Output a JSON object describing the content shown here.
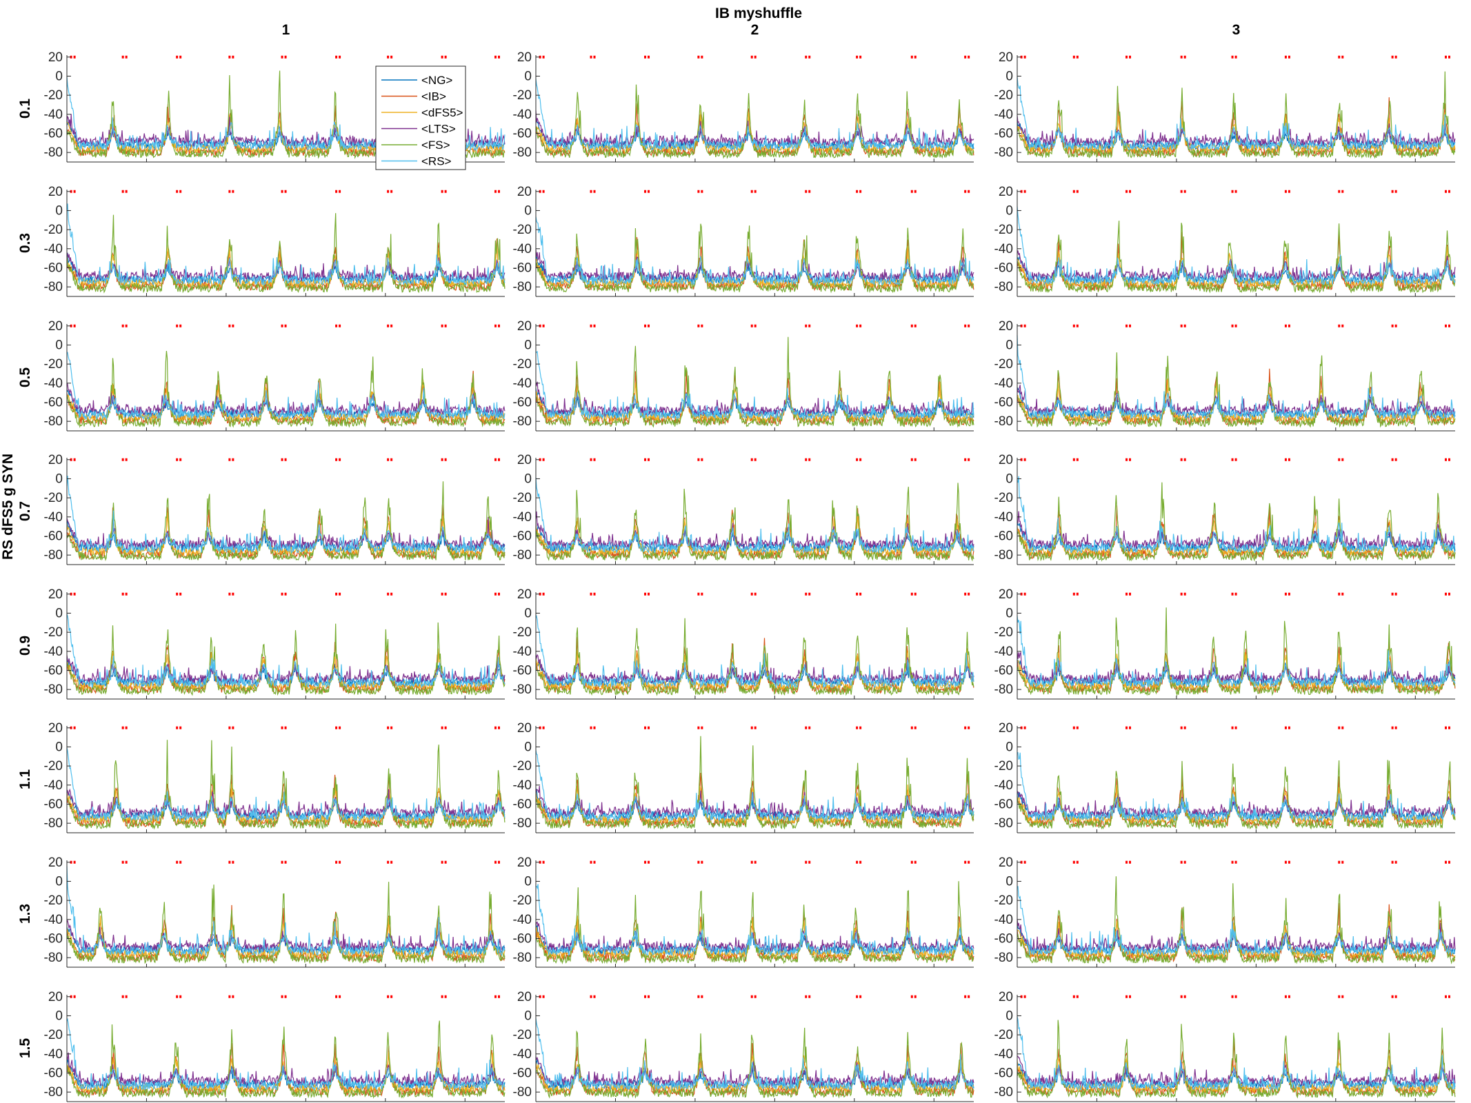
{
  "chart_data": {
    "type": "line",
    "title": "IB myshuffle",
    "column_labels": [
      "1",
      "2",
      "3"
    ],
    "row_axis_label": "RS dFS5 g SYN",
    "row_labels": [
      "0.1",
      "0.3",
      "0.5",
      "0.7",
      "0.9",
      "1.1",
      "1.3",
      "1.5"
    ],
    "xlim": [
      0,
      5500
    ],
    "ylim": [
      -90,
      22
    ],
    "x_ticks": [
      "0",
      "1000",
      "2000",
      "3000",
      "4000",
      "5000"
    ],
    "y_ticks": [
      "20",
      "0",
      "-20",
      "-40",
      "-60",
      "-80"
    ],
    "y_tick_values": [
      20,
      0,
      -20,
      -40,
      -60,
      -80
    ],
    "x_tick_values": [
      0,
      1000,
      2000,
      3000,
      4000,
      5000
    ],
    "series": [
      {
        "name": "<NG>",
        "color": "#0072BD",
        "baseline": -72
      },
      {
        "name": "<IB>",
        "color": "#D95319",
        "baseline": -79
      },
      {
        "name": "<dFS5>",
        "color": "#EDB120",
        "baseline": -76
      },
      {
        "name": "<LTS>",
        "color": "#7E2F8E",
        "baseline": -69
      },
      {
        "name": "<FS>",
        "color": "#77AC30",
        "baseline": -81
      },
      {
        "name": "<RS>",
        "color": "#4DBEEE",
        "baseline": -73
      }
    ],
    "stimulus_marker": {
      "y": 20,
      "color": "#FF0000",
      "symbol": "*"
    },
    "stimulus_times": [
      [
        [
          40,
          110
        ],
        [
          690,
          760
        ],
        [
          1370,
          1440
        ],
        [
          2030,
          2100
        ],
        [
          2690,
          2760
        ],
        [
          3370,
          3440
        ],
        [
          4020,
          4090
        ],
        [
          4700,
          4770
        ],
        [
          5370,
          5440
        ]
      ],
      [
        [
          40,
          110
        ],
        [
          680,
          750
        ],
        [
          1360,
          1430
        ],
        [
          2030,
          2100
        ],
        [
          2700,
          2770
        ],
        [
          3380,
          3450
        ],
        [
          4020,
          4090
        ],
        [
          4710,
          4780
        ],
        [
          5380,
          5450
        ]
      ],
      [
        [
          40,
          110
        ],
        [
          700,
          770
        ],
        [
          1360,
          1430
        ],
        [
          2050,
          2120
        ],
        [
          2690,
          2760
        ],
        [
          3360,
          3430
        ],
        [
          4030,
          4100
        ],
        [
          4700,
          4770
        ],
        [
          5370,
          5440
        ]
      ]
    ],
    "burst_times": [
      [
        [
          560,
          1250,
          2030,
          2650,
          3350
        ],
        [
          560,
          1250,
          2020,
          2650,
          3350,
          4020,
          4650,
          5380
        ],
        [
          560,
          1230,
          1880,
          2480,
          3150,
          3820,
          4450,
          5080
        ],
        [
          560,
          1240,
          1760,
          2460,
          3150,
          3720,
          4020,
          4700,
          5270
        ],
        [
          560,
          1240,
          1800,
          2450,
          2850,
          3350,
          4000,
          4650,
          5400
        ],
        [
          600,
          1240,
          1800,
          2050,
          2700,
          3350,
          4020,
          4650,
          5400
        ],
        [
          400,
          1200,
          1820,
          2050,
          2700,
          3350,
          4020,
          4650,
          5300
        ],
        [
          560,
          1350,
          2050,
          2700,
          3350,
          4020,
          4650,
          5320
        ]
      ],
      [
        [
          500,
          1250,
          2050,
          2650,
          3350,
          4020,
          4650,
          5300
        ],
        [
          500,
          1250,
          2050,
          2650,
          3350,
          4020,
          4650,
          5340
        ],
        [
          500,
          1230,
          1870,
          2480,
          3150,
          3800,
          4420,
          5050
        ],
        [
          500,
          1230,
          1850,
          2450,
          3150,
          3720,
          4020,
          4650,
          5270
        ],
        [
          500,
          1250,
          1850,
          2450,
          2850,
          3350,
          4020,
          4650,
          5400
        ],
        [
          500,
          1230,
          2050,
          2700,
          3350,
          4020,
          4650,
          5400
        ],
        [
          500,
          1230,
          2050,
          2700,
          3350,
          4000,
          4650,
          5300
        ],
        [
          500,
          1350,
          2050,
          2700,
          3350,
          4020,
          4650,
          5320
        ]
      ],
      [
        [
          500,
          1250,
          2050,
          2700,
          3350,
          4020,
          4650,
          5350
        ],
        [
          500,
          1250,
          2050,
          2650,
          3350,
          4020,
          4650,
          5380
        ],
        [
          500,
          1230,
          1870,
          2480,
          3150,
          3800,
          4420,
          5050
        ],
        [
          500,
          1230,
          1800,
          2450,
          3150,
          3720,
          4020,
          4650,
          5270
        ],
        [
          500,
          1230,
          1850,
          2450,
          2850,
          3350,
          4020,
          4650,
          5400
        ],
        [
          500,
          1230,
          2050,
          2700,
          3350,
          4020,
          4650,
          5400
        ],
        [
          500,
          1230,
          2050,
          2700,
          3350,
          4020,
          4650,
          5300
        ],
        [
          500,
          1350,
          2050,
          2700,
          3350,
          4020,
          4650,
          5320
        ]
      ]
    ]
  }
}
